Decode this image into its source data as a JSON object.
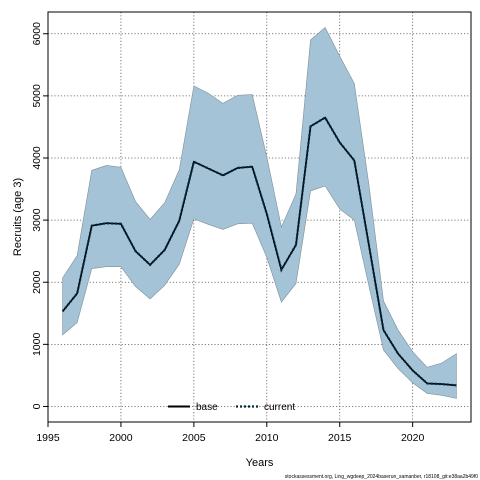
{
  "chart_data": {
    "type": "area",
    "title": "",
    "xlabel": "Years",
    "ylabel": "Recruits (age 3)",
    "xlim": [
      1995,
      2024
    ],
    "ylim": [
      -250,
      6350
    ],
    "xticks": [
      1995,
      2000,
      2005,
      2010,
      2015,
      2020
    ],
    "yticks": [
      0,
      1000,
      2000,
      3000,
      4000,
      5000,
      6000
    ],
    "grid": true,
    "legend_position": "bottom-center",
    "footnote": "stockassessment.org, Ling_wgdeep_2024baserun_samanber, r18108_git:e38aa2b49f0",
    "colors": {
      "band_fill": "#a4c3d6",
      "band_edge": "#7f8f99",
      "base_line": "#000000",
      "current_line": "#002a44"
    },
    "x": [
      1996,
      1997,
      1998,
      1999,
      2000,
      2001,
      2002,
      2003,
      2004,
      2005,
      2006,
      2007,
      2008,
      2009,
      2010,
      2011,
      2012,
      2013,
      2014,
      2015,
      2016,
      2017,
      2018,
      2019,
      2020,
      2021,
      2022,
      2023
    ],
    "series": [
      {
        "name": "base",
        "style": "solid",
        "values": [
          1530,
          1820,
          2910,
          2950,
          2940,
          2500,
          2280,
          2520,
          2990,
          3940,
          3830,
          3720,
          3840,
          3860,
          3100,
          2200,
          2600,
          4510,
          4650,
          4250,
          3960,
          2600,
          1230,
          850,
          580,
          370,
          360,
          340
        ]
      },
      {
        "name": "current",
        "style": "dotted",
        "values": [
          1530,
          1820,
          2910,
          2950,
          2940,
          2500,
          2280,
          2520,
          2990,
          3940,
          3830,
          3720,
          3840,
          3860,
          3100,
          2200,
          2600,
          4510,
          4650,
          4250,
          3960,
          2600,
          1230,
          850,
          580,
          370,
          360,
          340
        ]
      }
    ],
    "band": {
      "upper": [
        2070,
        2430,
        3800,
        3880,
        3850,
        3300,
        3010,
        3280,
        3810,
        5160,
        5040,
        4880,
        5010,
        5020,
        4020,
        2890,
        3420,
        5900,
        6100,
        5640,
        5200,
        3570,
        1700,
        1230,
        880,
        630,
        700,
        850
      ],
      "lower": [
        1150,
        1350,
        2220,
        2250,
        2250,
        1930,
        1730,
        1950,
        2290,
        3020,
        2930,
        2850,
        2940,
        2950,
        2400,
        1680,
        1980,
        3470,
        3550,
        3180,
        3000,
        1940,
        910,
        610,
        380,
        210,
        180,
        130
      ]
    }
  }
}
